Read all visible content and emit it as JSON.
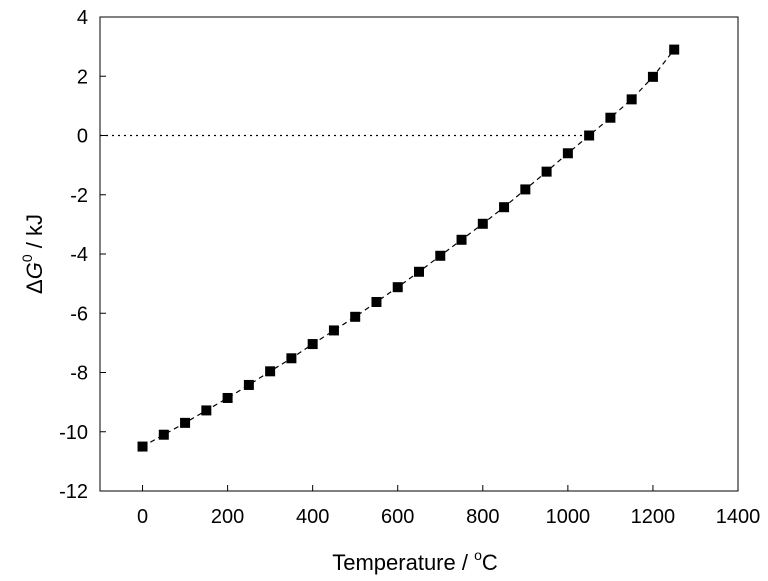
{
  "chart_data": {
    "type": "scatter",
    "title": "",
    "xlabel": "Temperature / °C",
    "xlabel_main": "Temperature / ",
    "xlabel_sup": "o",
    "xlabel_unit": "C",
    "ylabel": "ΔG0 / kJ",
    "ylabel_delta": "Δ",
    "ylabel_sym": "G",
    "ylabel_sup": "0",
    "ylabel_unit": " / kJ",
    "xlim": [
      -100,
      1400
    ],
    "ylim": [
      -12,
      4
    ],
    "xticks": [
      0,
      200,
      400,
      600,
      800,
      1000,
      1200,
      1400
    ],
    "yticks": [
      -12,
      -10,
      -8,
      -6,
      -4,
      -2,
      0,
      2,
      4
    ],
    "grid": false,
    "legend": "none",
    "reference_line": {
      "y": 0,
      "x_from": -100,
      "x_to": 1050,
      "style": "dotted"
    },
    "series": [
      {
        "marker": "square",
        "line_style": "dashed",
        "color": "#000000",
        "x": [
          0,
          50,
          100,
          150,
          200,
          250,
          300,
          350,
          400,
          450,
          500,
          550,
          600,
          650,
          700,
          750,
          800,
          850,
          900,
          950,
          1000,
          1050,
          1100,
          1150,
          1200,
          1250
        ],
        "y": [
          -10.5,
          -10.1,
          -9.7,
          -9.28,
          -8.86,
          -8.42,
          -7.96,
          -7.52,
          -7.04,
          -6.58,
          -6.12,
          -5.62,
          -5.12,
          -4.6,
          -4.06,
          -3.52,
          -2.98,
          -2.42,
          -1.82,
          -1.22,
          -0.6,
          0.0,
          0.6,
          1.22,
          1.98,
          2.9
        ]
      }
    ]
  }
}
